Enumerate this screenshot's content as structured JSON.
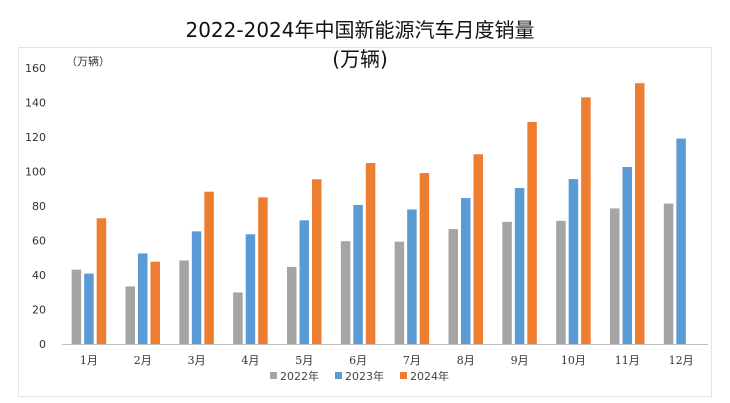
{
  "chart_data": {
    "type": "bar",
    "title_line1": "2022-2024年中国新能源汽车月度销量",
    "title_line2": "(万辆)",
    "unit_label": "（万辆）",
    "categories": [
      "1月",
      "2月",
      "3月",
      "4月",
      "5月",
      "6月",
      "7月",
      "8月",
      "9月",
      "10月",
      "11月",
      "12月"
    ],
    "series": [
      {
        "name": "2022年",
        "color": "#a5a5a5",
        "values": [
          43.1,
          33.4,
          48.4,
          29.9,
          44.7,
          59.6,
          59.3,
          66.6,
          70.8,
          71.4,
          78.6,
          81.4
        ]
      },
      {
        "name": "2023年",
        "color": "#5b9bd5",
        "values": [
          40.8,
          52.5,
          65.3,
          63.6,
          71.7,
          80.6,
          78.0,
          84.6,
          90.4,
          95.6,
          102.6,
          119.1
        ]
      },
      {
        "name": "2024年",
        "color": "#ed7d31",
        "values": [
          72.9,
          47.7,
          88.3,
          85.0,
          95.5,
          104.9,
          99.1,
          110.0,
          128.7,
          143.0,
          151.2,
          null
        ]
      }
    ],
    "ylim": [
      0,
      160
    ],
    "yticks": [
      0,
      20,
      40,
      60,
      80,
      100,
      120,
      140,
      160
    ],
    "grid": false,
    "legend_position": "bottom"
  }
}
